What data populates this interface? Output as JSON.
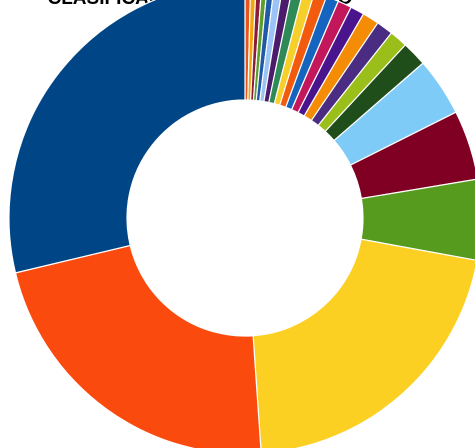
{
  "chart_data": {
    "type": "pie",
    "title": "CLASIFICACION POR ORGANICO",
    "donut": true,
    "legend": "none",
    "slices": [
      {
        "value": 0.4,
        "color": "#E8541B"
      },
      {
        "value": 0.4,
        "color": "#F4A70A"
      },
      {
        "value": 0.4,
        "color": "#8A1B3A"
      },
      {
        "value": 0.4,
        "color": "#5B9E2A"
      },
      {
        "value": 0.5,
        "color": "#1E5AA8"
      },
      {
        "value": 0.6,
        "color": "#9CC3F5"
      },
      {
        "value": 0.7,
        "color": "#4B1C6B"
      },
      {
        "value": 0.8,
        "color": "#2E8B57"
      },
      {
        "value": 0.8,
        "color": "#F7CF2A"
      },
      {
        "value": 0.9,
        "color": "#F25A0E"
      },
      {
        "value": 0.9,
        "color": "#1565C0"
      },
      {
        "value": 1.0,
        "color": "#C2185B"
      },
      {
        "value": 1.0,
        "color": "#4A148C"
      },
      {
        "value": 1.2,
        "color": "#F48C06"
      },
      {
        "value": 1.2,
        "color": "#4A2C82"
      },
      {
        "value": 1.3,
        "color": "#9BBF1A"
      },
      {
        "value": 1.8,
        "color": "#1F4E1A"
      },
      {
        "value": 4.2,
        "color": "#7FCBF7"
      },
      {
        "value": 5.0,
        "color": "#7F0022"
      },
      {
        "value": 5.8,
        "color": "#569B1E"
      },
      {
        "value": 22.1,
        "color": "#FCD022"
      },
      {
        "value": 23.5,
        "color": "#FB4A0E"
      },
      {
        "value": 30.2,
        "color": "#004585"
      }
    ]
  }
}
